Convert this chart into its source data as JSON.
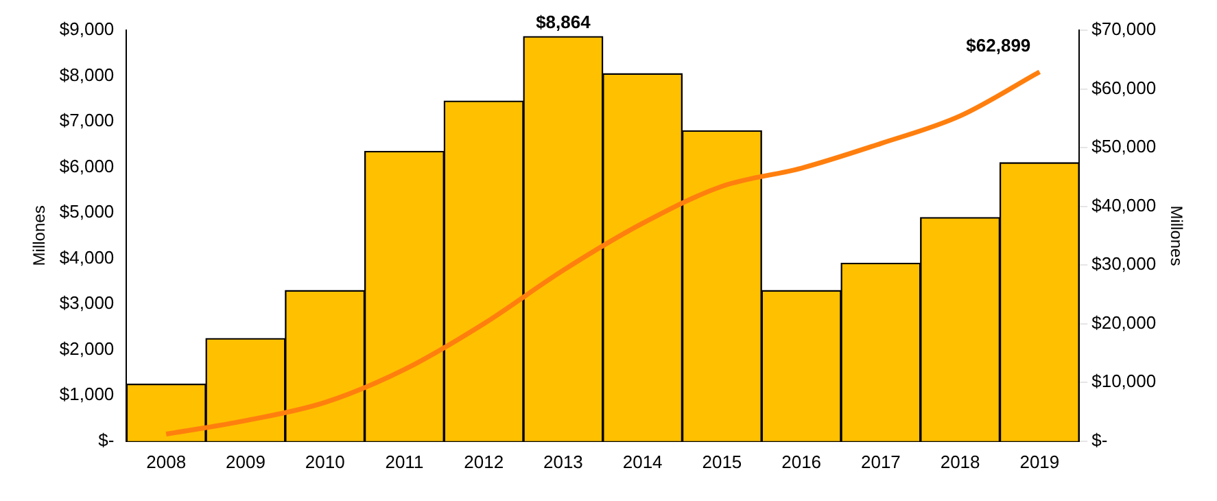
{
  "chart_data": {
    "type": "bar",
    "ylabel": "Millones",
    "y2label": "Millones",
    "categories": [
      "2008",
      "2009",
      "2010",
      "2011",
      "2012",
      "2013",
      "2014",
      "2015",
      "2016",
      "2017",
      "2018",
      "2019"
    ],
    "series": [
      {
        "color": "#ffc000",
        "values": [
          1250,
          2250,
          3300,
          6350,
          7450,
          8864,
          8050,
          6800,
          3300,
          3900,
          4900,
          6100
        ],
        "value_labels": [
          null,
          null,
          null,
          null,
          null,
          "$8,864",
          null,
          null,
          null,
          null,
          null,
          null
        ]
      },
      {
        "type": "line",
        "axis": "y2",
        "color": "#ff7f0e",
        "values": [
          1200,
          3500,
          6600,
          12200,
          20000,
          29100,
          37100,
          43400,
          46500,
          50700,
          55400,
          62899
        ],
        "value_labels": [
          null,
          null,
          null,
          null,
          null,
          null,
          null,
          null,
          null,
          null,
          null,
          "$62,899"
        ]
      }
    ],
    "ylim": [
      0,
      9000
    ],
    "yticks": [
      {
        "value": 0,
        "label": "$-"
      },
      {
        "value": 1000,
        "label": "$1,000"
      },
      {
        "value": 2000,
        "label": "$2,000"
      },
      {
        "value": 3000,
        "label": "$3,000"
      },
      {
        "value": 4000,
        "label": "$4,000"
      },
      {
        "value": 5000,
        "label": "$5,000"
      },
      {
        "value": 6000,
        "label": "$6,000"
      },
      {
        "value": 7000,
        "label": "$7,000"
      },
      {
        "value": 8000,
        "label": "$8,000"
      },
      {
        "value": 9000,
        "label": "$9,000"
      }
    ],
    "y2lim": [
      0,
      70000
    ],
    "y2ticks": [
      {
        "value": 0,
        "label": "$-"
      },
      {
        "value": 10000,
        "label": "$10,000"
      },
      {
        "value": 20000,
        "label": "$20,000"
      },
      {
        "value": 30000,
        "label": "$30,000"
      },
      {
        "value": 40000,
        "label": "$40,000"
      },
      {
        "value": 50000,
        "label": "$50,000"
      },
      {
        "value": 60000,
        "label": "$60,000"
      },
      {
        "value": 70000,
        "label": "$70,000"
      }
    ],
    "grid": false,
    "legend": false,
    "marker": "none",
    "line_style": "solid"
  }
}
